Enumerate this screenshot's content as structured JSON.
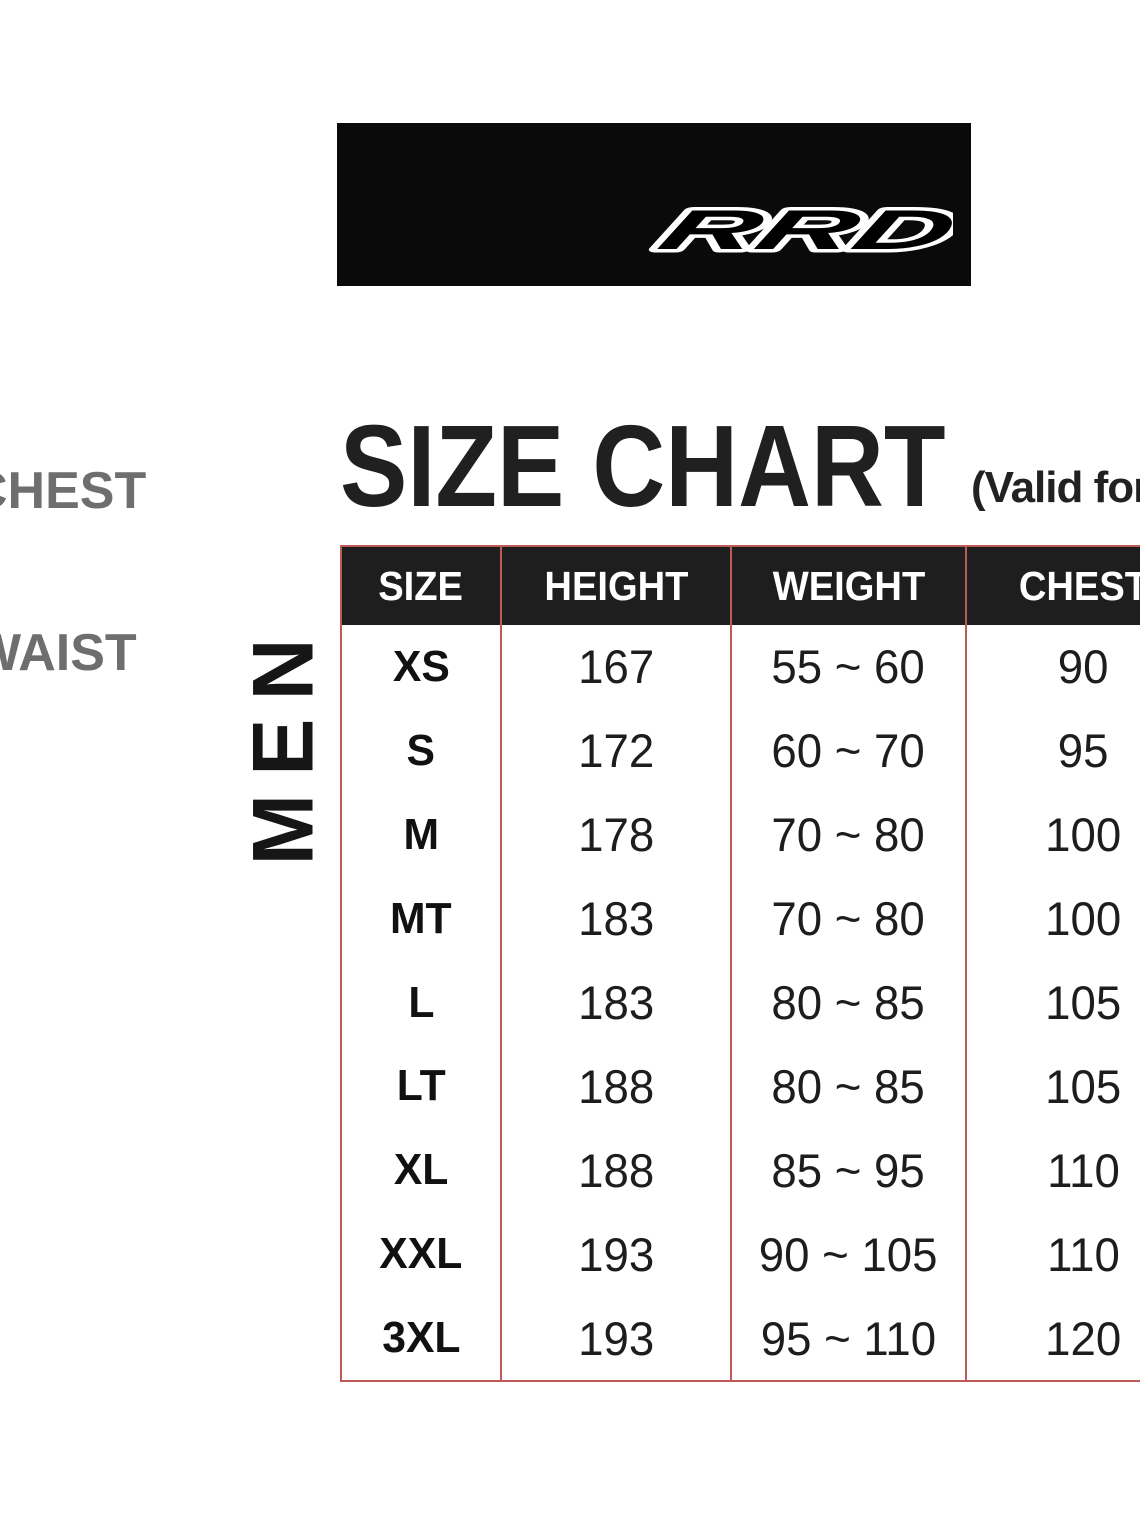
{
  "brand": {
    "logo_text": "RRD"
  },
  "header": {
    "title": "SIZE CHART",
    "validity_note": "(Valid for W"
  },
  "measurement_labels": {
    "chest": "CHEST",
    "waist": "WAIST"
  },
  "group_label": "MEN",
  "colors": {
    "banner_background": "#0a0a0a",
    "table_header_background": "#1e1e1e",
    "table_border_red": "#bd5957",
    "title_text": "#202020",
    "side_label_gray": "#6e6e6e"
  },
  "chart_data": {
    "type": "table",
    "title": "SIZE CHART",
    "subtitle": "(Valid for W",
    "group": "MEN",
    "columns": [
      "SIZE",
      "HEIGHT",
      "WEIGHT",
      "CHEST"
    ],
    "rows": [
      {
        "size": "XS",
        "height": "167",
        "weight": "55 ~ 60",
        "chest": "90"
      },
      {
        "size": "S",
        "height": "172",
        "weight": "60 ~ 70",
        "chest": "95"
      },
      {
        "size": "M",
        "height": "178",
        "weight": "70 ~ 80",
        "chest": "100"
      },
      {
        "size": "MT",
        "height": "183",
        "weight": "70 ~ 80",
        "chest": "100"
      },
      {
        "size": "L",
        "height": "183",
        "weight": "80 ~ 85",
        "chest": "105"
      },
      {
        "size": "LT",
        "height": "188",
        "weight": "80 ~ 85",
        "chest": "105"
      },
      {
        "size": "XL",
        "height": "188",
        "weight": "85 ~ 95",
        "chest": "110"
      },
      {
        "size": "XXL",
        "height": "193",
        "weight": "90 ~ 105",
        "chest": "110"
      },
      {
        "size": "3XL",
        "height": "193",
        "weight": "95 ~ 110",
        "chest": "120"
      }
    ]
  }
}
